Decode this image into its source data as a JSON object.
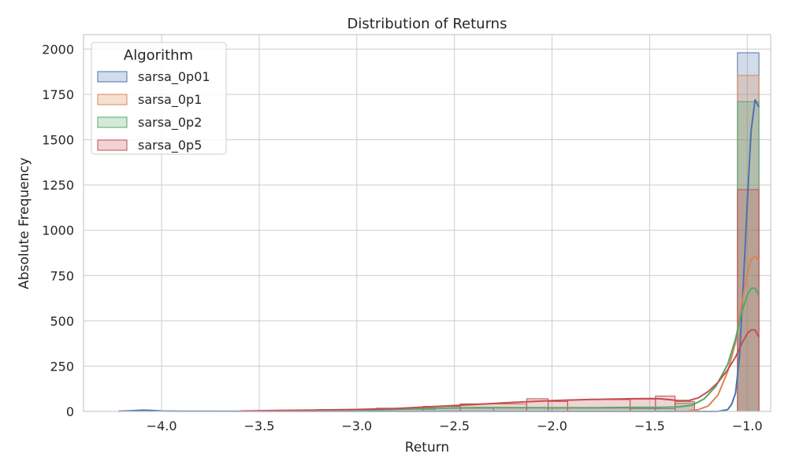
{
  "chart_data": {
    "type": "histogram",
    "title": "Distribution of Returns",
    "xlabel": "Return",
    "ylabel": "Absolute Frequency",
    "xlim": [
      -4.4,
      -0.88
    ],
    "ylim": [
      0,
      2080
    ],
    "x_ticks": [
      {
        "value": -4.0,
        "label": "−4.0"
      },
      {
        "value": -3.5,
        "label": "−3.5"
      },
      {
        "value": -3.0,
        "label": "−3.0"
      },
      {
        "value": -2.5,
        "label": "−2.5"
      },
      {
        "value": -2.0,
        "label": "−2.0"
      },
      {
        "value": -1.5,
        "label": "−1.5"
      },
      {
        "value": -1.0,
        "label": "−1.0"
      }
    ],
    "y_ticks": [
      {
        "value": 0,
        "label": "0"
      },
      {
        "value": 250,
        "label": "250"
      },
      {
        "value": 500,
        "label": "500"
      },
      {
        "value": 750,
        "label": "750"
      },
      {
        "value": 1000,
        "label": "1000"
      },
      {
        "value": 1250,
        "label": "1250"
      },
      {
        "value": 1500,
        "label": "1500"
      },
      {
        "value": 1750,
        "label": "1750"
      },
      {
        "value": 2000,
        "label": "2000"
      }
    ],
    "grid": true,
    "legend": {
      "title": "Algorithm",
      "position": "top-left"
    },
    "series": [
      {
        "name": "sarsa_0p01",
        "color": "#4c72b0",
        "bins": [
          {
            "x0": -1.05,
            "x1": -0.94,
            "count": 1980
          }
        ],
        "kde": [
          [
            -4.22,
            1
          ],
          [
            -4.15,
            4
          ],
          [
            -4.1,
            7
          ],
          [
            -4.05,
            5
          ],
          [
            -4.0,
            2
          ],
          [
            -3.9,
            1
          ],
          [
            -1.3,
            0
          ],
          [
            -1.15,
            0
          ],
          [
            -1.1,
            10
          ],
          [
            -1.08,
            40
          ],
          [
            -1.06,
            100
          ],
          [
            -1.04,
            300
          ],
          [
            -1.02,
            700
          ],
          [
            -1.0,
            1150
          ],
          [
            -0.98,
            1550
          ],
          [
            -0.96,
            1720
          ],
          [
            -0.94,
            1680
          ]
        ]
      },
      {
        "name": "sarsa_0p1",
        "color": "#dd8452",
        "bins": [
          {
            "x0": -1.05,
            "x1": -0.94,
            "count": 1855
          }
        ],
        "kde": [
          [
            -1.3,
            4
          ],
          [
            -1.25,
            10
          ],
          [
            -1.2,
            30
          ],
          [
            -1.15,
            90
          ],
          [
            -1.1,
            220
          ],
          [
            -1.06,
            380
          ],
          [
            -1.03,
            580
          ],
          [
            -1.0,
            760
          ],
          [
            -0.98,
            840
          ],
          [
            -0.96,
            860
          ],
          [
            -0.94,
            830
          ]
        ]
      },
      {
        "name": "sarsa_0p2",
        "color": "#55a868",
        "bins": [
          {
            "x0": -3.2,
            "x1": -2.9,
            "count": 5
          },
          {
            "x0": -2.9,
            "x1": -2.6,
            "count": 12
          },
          {
            "x0": -2.6,
            "x1": -2.3,
            "count": 18
          },
          {
            "x0": -2.3,
            "x1": -2.0,
            "count": 20
          },
          {
            "x0": -2.0,
            "x1": -1.6,
            "count": 18
          },
          {
            "x0": -1.6,
            "x1": -1.37,
            "count": 15
          },
          {
            "x0": -1.37,
            "x1": -1.27,
            "count": 45
          },
          {
            "x0": -1.05,
            "x1": -0.94,
            "count": 1710
          }
        ],
        "kde": [
          [
            -3.3,
            3
          ],
          [
            -3.0,
            6
          ],
          [
            -2.8,
            12
          ],
          [
            -2.6,
            18
          ],
          [
            -2.4,
            21
          ],
          [
            -2.2,
            21
          ],
          [
            -2.0,
            20
          ],
          [
            -1.8,
            20
          ],
          [
            -1.6,
            22
          ],
          [
            -1.45,
            22
          ],
          [
            -1.35,
            25
          ],
          [
            -1.28,
            35
          ],
          [
            -1.22,
            70
          ],
          [
            -1.16,
            140
          ],
          [
            -1.1,
            260
          ],
          [
            -1.06,
            400
          ],
          [
            -1.03,
            540
          ],
          [
            -1.0,
            640
          ],
          [
            -0.98,
            680
          ],
          [
            -0.96,
            680
          ],
          [
            -0.94,
            640
          ]
        ]
      },
      {
        "name": "sarsa_0p5",
        "color": "#c44e52",
        "bins": [
          {
            "x0": -3.5,
            "x1": -3.2,
            "count": 5
          },
          {
            "x0": -3.2,
            "x1": -2.9,
            "count": 10
          },
          {
            "x0": -2.9,
            "x1": -2.66,
            "count": 18
          },
          {
            "x0": -2.66,
            "x1": -2.47,
            "count": 28
          },
          {
            "x0": -2.47,
            "x1": -2.13,
            "count": 42
          },
          {
            "x0": -2.13,
            "x1": -2.02,
            "count": 70
          },
          {
            "x0": -2.02,
            "x1": -1.92,
            "count": 55
          },
          {
            "x0": -1.92,
            "x1": -1.6,
            "count": 65
          },
          {
            "x0": -1.6,
            "x1": -1.47,
            "count": 68
          },
          {
            "x0": -1.47,
            "x1": -1.37,
            "count": 85
          },
          {
            "x0": -1.37,
            "x1": -1.27,
            "count": 55
          },
          {
            "x0": -1.05,
            "x1": -0.94,
            "count": 1225
          }
        ],
        "kde": [
          [
            -3.6,
            2
          ],
          [
            -3.4,
            5
          ],
          [
            -3.2,
            8
          ],
          [
            -3.0,
            11
          ],
          [
            -2.8,
            16
          ],
          [
            -2.6,
            27
          ],
          [
            -2.4,
            38
          ],
          [
            -2.2,
            50
          ],
          [
            -2.0,
            60
          ],
          [
            -1.8,
            66
          ],
          [
            -1.6,
            70
          ],
          [
            -1.5,
            71
          ],
          [
            -1.45,
            70
          ],
          [
            -1.4,
            65
          ],
          [
            -1.35,
            60
          ],
          [
            -1.3,
            60
          ],
          [
            -1.25,
            75
          ],
          [
            -1.2,
            110
          ],
          [
            -1.15,
            160
          ],
          [
            -1.1,
            230
          ],
          [
            -1.06,
            300
          ],
          [
            -1.03,
            370
          ],
          [
            -1.0,
            430
          ],
          [
            -0.98,
            450
          ],
          [
            -0.96,
            450
          ],
          [
            -0.94,
            410
          ]
        ]
      }
    ]
  }
}
